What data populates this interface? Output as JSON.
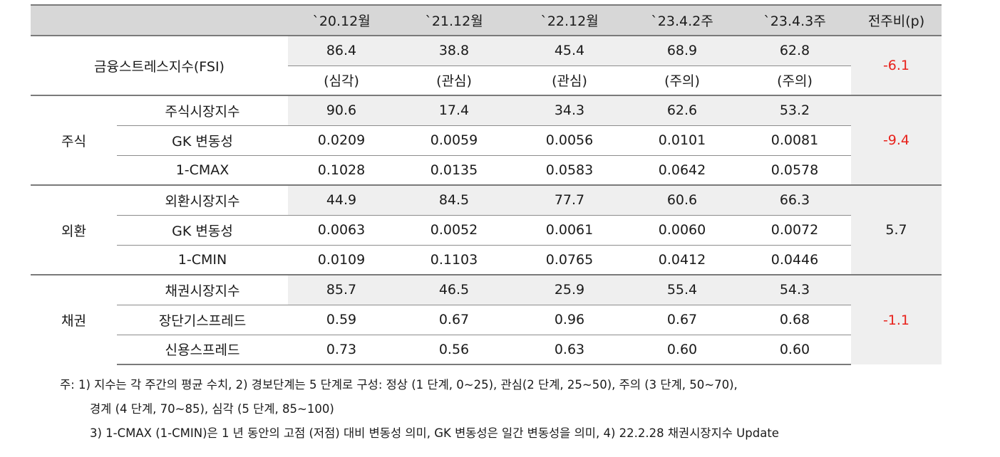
{
  "table": {
    "headers": [
      "",
      "",
      "`20.12월",
      "`21.12월",
      "`22.12월",
      "`23.4.2주",
      "`23.4.3주",
      "전주비(p)"
    ],
    "fsi": {
      "label": "금융스트레스지수(FSI)",
      "values": [
        "86.4",
        "38.8",
        "45.4",
        "68.9",
        "62.8"
      ],
      "levels": [
        "(심각)",
        "(관심)",
        "(관심)",
        "(주의)",
        "(주의)"
      ],
      "change": "-6.1"
    },
    "groups": [
      {
        "name": "주식",
        "change": "-9.4",
        "rows": [
          {
            "label": "주식시장지수",
            "values": [
              "90.6",
              "17.4",
              "34.3",
              "62.6",
              "53.2"
            ]
          },
          {
            "label": "GK 변동성",
            "values": [
              "0.0209",
              "0.0059",
              "0.0056",
              "0.0101",
              "0.0081"
            ]
          },
          {
            "label": "1-CMAX",
            "values": [
              "0.1028",
              "0.0135",
              "0.0583",
              "0.0642",
              "0.0578"
            ]
          }
        ]
      },
      {
        "name": "외환",
        "change": "5.7",
        "rows": [
          {
            "label": "외환시장지수",
            "values": [
              "44.9",
              "84.5",
              "77.7",
              "60.6",
              "66.3"
            ]
          },
          {
            "label": "GK 변동성",
            "values": [
              "0.0063",
              "0.0052",
              "0.0061",
              "0.0060",
              "0.0072"
            ]
          },
          {
            "label": "1-CMIN",
            "values": [
              "0.0109",
              "0.1103",
              "0.0765",
              "0.0412",
              "0.0446"
            ]
          }
        ]
      },
      {
        "name": "채권",
        "change": "-1.1",
        "rows": [
          {
            "label": "채권시장지수",
            "values": [
              "85.7",
              "46.5",
              "25.9",
              "55.4",
              "54.3"
            ]
          },
          {
            "label": "장단기스프레드",
            "values": [
              "0.59",
              "0.67",
              "0.96",
              "0.67",
              "0.68"
            ]
          },
          {
            "label": "신용스프레드",
            "values": [
              "0.73",
              "0.56",
              "0.63",
              "0.60",
              "0.60"
            ]
          }
        ]
      }
    ]
  },
  "notes": [
    "주: 1) 지수는 각 주간의 평균 수치, 2) 경보단계는 5 단계로 구성: 정상 (1 단계, 0~25), 관심(2 단계, 25~50), 주의 (3 단계, 50~70),",
    "경계 (4 단계, 70~85), 심각 (5 단계, 85~100)",
    "3) 1-CMAX (1-CMIN)은 1 년 동안의 고점 (저점) 대비 변동성 의미, GK 변동성은 일간 변동성을 의미, 4) 22.2.28 채권시장지수 Update"
  ],
  "colors": {
    "negative": "#e8211b",
    "header_bg": "#d7d7d7",
    "shade_bg": "#efefef"
  }
}
